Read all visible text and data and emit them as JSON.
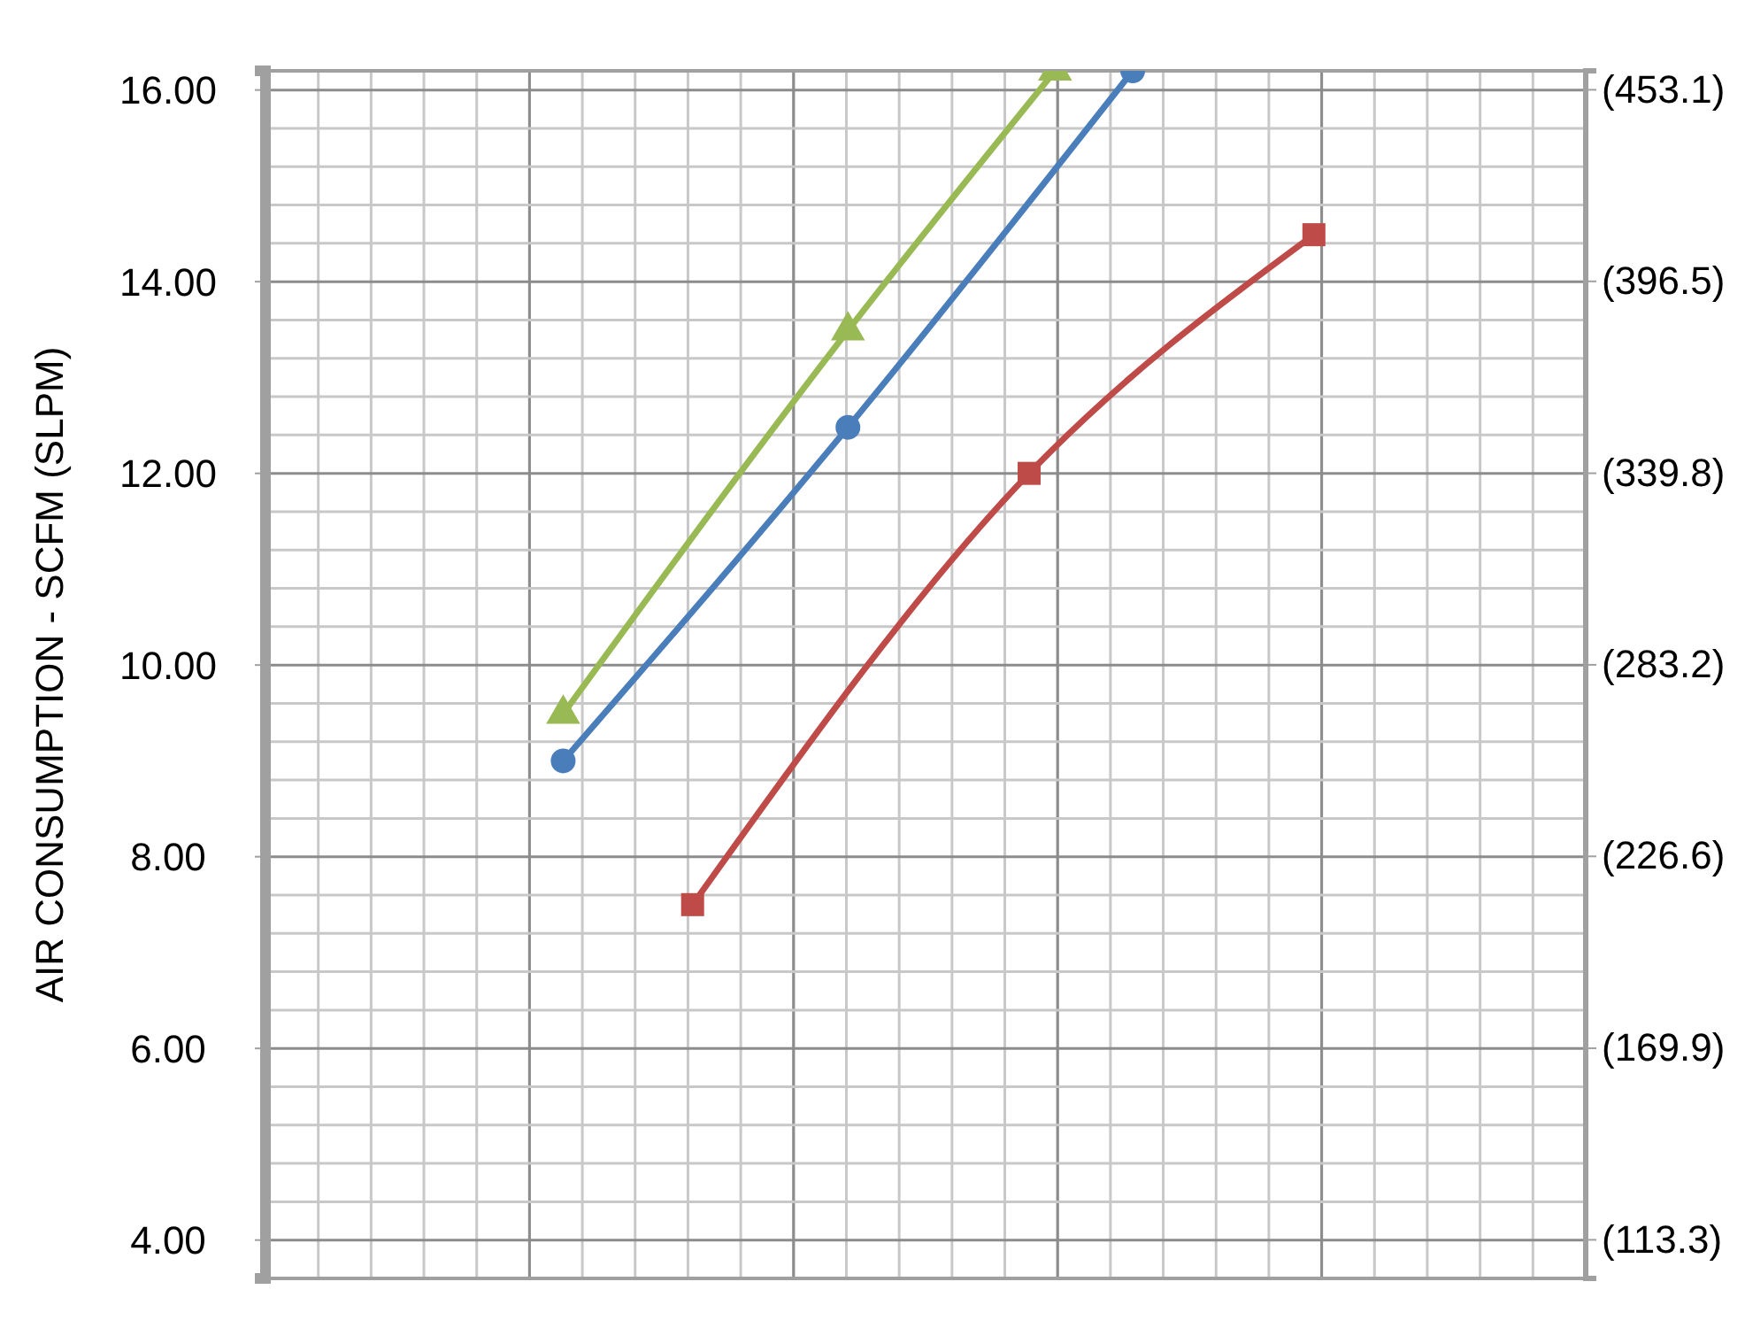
{
  "chart_data": {
    "type": "line",
    "ylabel": "AIR CONSUMPTION -  SCFM   (SLPM)",
    "categories": [
      null,
      null,
      null,
      null,
      null,
      null,
      null,
      null,
      null,
      null,
      null,
      null,
      null,
      null,
      null,
      null,
      null,
      null,
      null,
      null,
      null,
      null,
      null,
      null,
      null,
      null,
      null,
      null,
      null,
      null,
      null,
      null,
      null,
      null,
      null,
      null,
      null,
      null,
      null,
      null,
      null,
      null,
      null,
      null,
      null,
      null,
      null,
      null,
      null,
      null,
      null
    ],
    "ylim": [
      3.6,
      16.2
    ],
    "yticks": [
      {
        "value": 4,
        "label": "4.00"
      },
      {
        "value": 6,
        "label": "6.00"
      },
      {
        "value": 8,
        "label": "8.00"
      },
      {
        "value": 10,
        "label": "10.00"
      },
      {
        "value": 12,
        "label": "12.00"
      },
      {
        "value": 14,
        "label": "14.00"
      },
      {
        "value": 16,
        "label": "16.00"
      }
    ],
    "y2lim": [
      101.9,
      458.7
    ],
    "y2ticks": [
      {
        "value": 113.3,
        "label": "(113.3)"
      },
      {
        "value": 169.9,
        "label": "(169.9)"
      },
      {
        "value": 226.6,
        "label": "(226.6)"
      },
      {
        "value": 283.2,
        "label": "(283.2)"
      },
      {
        "value": 339.8,
        "label": "(339.8)"
      },
      {
        "value": 396.5,
        "label": "(396.5)"
      },
      {
        "value": 453.1,
        "label": "(453.1)"
      }
    ],
    "tick_labels": "y",
    "grid": true,
    "series": [
      {
        "color": "#4a7ebb",
        "marker": "circle",
        "values": [
          null,
          null,
          null,
          null,
          null,
          null,
          null,
          null,
          null,
          null,
          null,
          9.0,
          null,
          null,
          null,
          null,
          null,
          null,
          null,
          null,
          null,
          null,
          12.48,
          null,
          null,
          null,
          null,
          null,
          null,
          null,
          null,
          null,
          null,
          16.2,
          null,
          null,
          null,
          null,
          null,
          null,
          null,
          null,
          null,
          null,
          null,
          null,
          null,
          null,
          null,
          null,
          null
        ]
      },
      {
        "color": "#be4b48",
        "marker": "square",
        "values": [
          null,
          null,
          null,
          null,
          null,
          null,
          null,
          null,
          null,
          null,
          null,
          null,
          null,
          null,
          null,
          null,
          7.5,
          null,
          null,
          null,
          null,
          null,
          null,
          null,
          null,
          null,
          null,
          null,
          null,
          12.0,
          null,
          null,
          null,
          null,
          null,
          null,
          null,
          null,
          null,
          null,
          14.49,
          null,
          null,
          null,
          null,
          null,
          null,
          null,
          null,
          null,
          null
        ]
      },
      {
        "color": "#98b954",
        "marker": "triangle",
        "values": [
          null,
          null,
          null,
          null,
          null,
          null,
          null,
          null,
          null,
          null,
          null,
          9.49,
          null,
          null,
          null,
          null,
          null,
          null,
          null,
          null,
          null,
          null,
          13.49,
          null,
          null,
          null,
          null,
          null,
          null,
          null,
          16.2,
          null,
          null,
          null,
          null,
          null,
          null,
          null,
          null,
          null,
          null,
          null,
          null,
          null,
          null,
          null,
          null,
          null,
          null,
          null,
          null
        ]
      }
    ]
  }
}
